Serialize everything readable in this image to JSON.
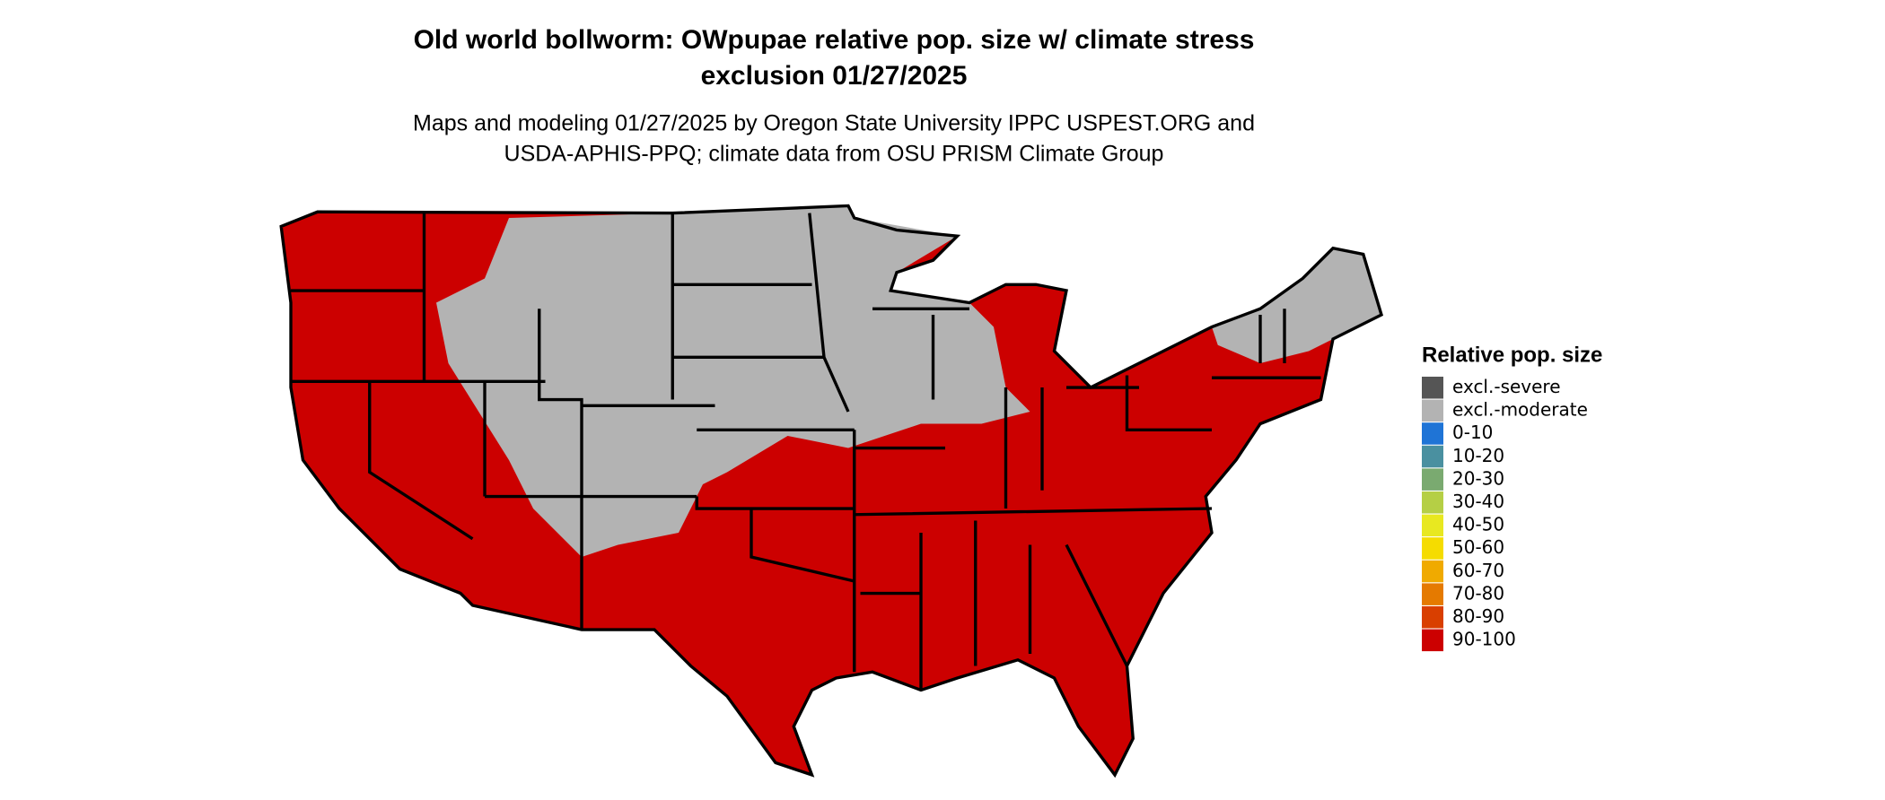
{
  "title": [
    "Old world bollworm: OWpupae relative pop. size w/ climate stress",
    "exclusion 01/27/2025"
  ],
  "subtitle": [
    "Maps and modeling 01/27/2025 by Oregon State University IPPC USPEST.ORG and",
    "USDA-APHIS-PPQ; climate data from OSU PRISM Climate Group"
  ],
  "legend": {
    "title": "Relative pop. size",
    "items": [
      {
        "label": "excl.-severe",
        "color": "#555555"
      },
      {
        "label": "excl.-moderate",
        "color": "#b3b3b3"
      },
      {
        "label": "0-10",
        "color": "#1f74d6"
      },
      {
        "label": "10-20",
        "color": "#4a90a0"
      },
      {
        "label": "20-30",
        "color": "#7aaa70"
      },
      {
        "label": "30-40",
        "color": "#b5cf45"
      },
      {
        "label": "40-50",
        "color": "#e8e820"
      },
      {
        "label": "50-60",
        "color": "#f5dc00"
      },
      {
        "label": "60-70",
        "color": "#f0aa00"
      },
      {
        "label": "70-80",
        "color": "#e57a00"
      },
      {
        "label": "80-90",
        "color": "#d93f00"
      },
      {
        "label": "90-100",
        "color": "#cc0000"
      }
    ]
  }
}
